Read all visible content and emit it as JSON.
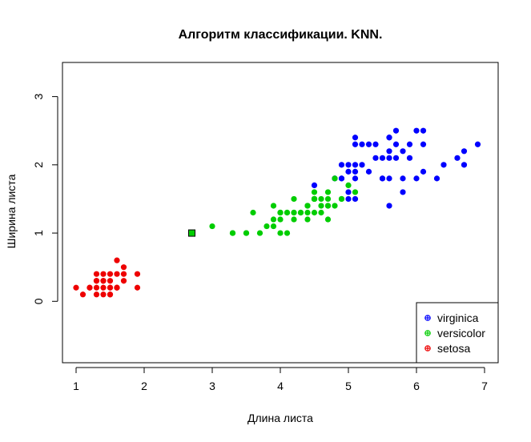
{
  "chart_data": {
    "type": "scatter",
    "title": "Алгоритм классификации. KNN.",
    "xlabel": "Длина листа",
    "ylabel": "Ширина листа",
    "xlim": [
      0.8,
      7.2
    ],
    "ylim": [
      -0.9,
      3.5
    ],
    "xticks": [
      "1",
      "2",
      "3",
      "4",
      "5",
      "6",
      "7"
    ],
    "yticks": [
      "0",
      "1",
      "2",
      "3"
    ],
    "xtick_values": [
      1,
      2,
      3,
      4,
      5,
      6,
      7
    ],
    "ytick_values": [
      0,
      1,
      2,
      3
    ],
    "legend_position": "bottom-right",
    "series": [
      {
        "name": "virginica",
        "color": "#0000ff",
        "points": [
          [
            6.0,
            2.5
          ],
          [
            5.1,
            1.9
          ],
          [
            5.9,
            2.1
          ],
          [
            5.6,
            1.8
          ],
          [
            5.8,
            2.2
          ],
          [
            6.6,
            2.1
          ],
          [
            4.5,
            1.7
          ],
          [
            6.3,
            1.8
          ],
          [
            5.8,
            1.8
          ],
          [
            6.1,
            2.5
          ],
          [
            5.1,
            2.0
          ],
          [
            5.3,
            1.9
          ],
          [
            5.5,
            2.1
          ],
          [
            5.0,
            2.0
          ],
          [
            5.1,
            2.4
          ],
          [
            5.3,
            2.3
          ],
          [
            5.5,
            1.8
          ],
          [
            6.7,
            2.2
          ],
          [
            6.9,
            2.3
          ],
          [
            5.0,
            1.5
          ],
          [
            5.7,
            2.3
          ],
          [
            4.9,
            2.0
          ],
          [
            6.7,
            2.0
          ],
          [
            4.9,
            1.8
          ],
          [
            5.7,
            2.1
          ],
          [
            6.0,
            1.8
          ],
          [
            4.8,
            1.8
          ],
          [
            4.9,
            1.8
          ],
          [
            5.6,
            2.1
          ],
          [
            5.8,
            1.6
          ],
          [
            6.1,
            1.9
          ],
          [
            6.4,
            2.0
          ],
          [
            5.6,
            2.2
          ],
          [
            5.1,
            1.5
          ],
          [
            5.6,
            1.4
          ],
          [
            6.1,
            2.3
          ],
          [
            5.6,
            2.4
          ],
          [
            5.5,
            1.8
          ],
          [
            4.8,
            1.8
          ],
          [
            5.4,
            2.1
          ],
          [
            5.6,
            2.4
          ],
          [
            5.1,
            2.3
          ],
          [
            5.9,
            2.3
          ],
          [
            5.7,
            2.5
          ],
          [
            5.2,
            2.3
          ],
          [
            5.0,
            1.9
          ],
          [
            5.2,
            2.0
          ],
          [
            5.4,
            2.3
          ],
          [
            5.1,
            1.8
          ],
          [
            5.0,
            1.6
          ]
        ]
      },
      {
        "name": "versicolor",
        "color": "#00cd00",
        "points": [
          [
            4.7,
            1.4
          ],
          [
            4.5,
            1.5
          ],
          [
            4.9,
            1.5
          ],
          [
            4.0,
            1.3
          ],
          [
            4.6,
            1.5
          ],
          [
            4.5,
            1.3
          ],
          [
            4.7,
            1.6
          ],
          [
            3.3,
            1.0
          ],
          [
            4.6,
            1.3
          ],
          [
            3.9,
            1.4
          ],
          [
            3.5,
            1.0
          ],
          [
            4.2,
            1.5
          ],
          [
            4.0,
            1.0
          ],
          [
            4.7,
            1.4
          ],
          [
            3.6,
            1.3
          ],
          [
            4.4,
            1.4
          ],
          [
            4.5,
            1.5
          ],
          [
            4.1,
            1.0
          ],
          [
            4.5,
            1.5
          ],
          [
            3.9,
            1.1
          ],
          [
            4.8,
            1.8
          ],
          [
            4.0,
            1.3
          ],
          [
            4.9,
            1.5
          ],
          [
            4.7,
            1.2
          ],
          [
            4.3,
            1.3
          ],
          [
            4.4,
            1.4
          ],
          [
            4.8,
            1.4
          ],
          [
            5.0,
            1.7
          ],
          [
            4.5,
            1.5
          ],
          [
            3.5,
            1.0
          ],
          [
            3.8,
            1.1
          ],
          [
            3.7,
            1.0
          ],
          [
            3.9,
            1.2
          ],
          [
            5.1,
            1.6
          ],
          [
            4.5,
            1.5
          ],
          [
            4.5,
            1.6
          ],
          [
            4.7,
            1.5
          ],
          [
            4.4,
            1.3
          ],
          [
            4.1,
            1.3
          ],
          [
            4.0,
            1.3
          ],
          [
            4.4,
            1.2
          ],
          [
            4.6,
            1.4
          ],
          [
            4.0,
            1.2
          ],
          [
            3.3,
            1.0
          ],
          [
            4.2,
            1.3
          ],
          [
            4.2,
            1.2
          ],
          [
            4.2,
            1.3
          ],
          [
            4.3,
            1.3
          ],
          [
            3.0,
            1.1
          ],
          [
            4.1,
            1.3
          ]
        ]
      },
      {
        "name": "setosa",
        "color": "#ee0000",
        "points": [
          [
            1.4,
            0.2
          ],
          [
            1.3,
            0.2
          ],
          [
            1.5,
            0.2
          ],
          [
            1.7,
            0.4
          ],
          [
            1.4,
            0.3
          ],
          [
            1.5,
            0.1
          ],
          [
            1.6,
            0.2
          ],
          [
            1.1,
            0.1
          ],
          [
            1.2,
            0.2
          ],
          [
            1.5,
            0.4
          ],
          [
            1.3,
            0.4
          ],
          [
            1.7,
            0.3
          ],
          [
            1.0,
            0.2
          ],
          [
            1.7,
            0.5
          ],
          [
            1.9,
            0.2
          ],
          [
            1.6,
            0.4
          ],
          [
            1.6,
            0.2
          ],
          [
            1.5,
            0.2
          ],
          [
            1.4,
            0.1
          ],
          [
            1.3,
            0.3
          ],
          [
            1.3,
            0.3
          ],
          [
            1.6,
            0.6
          ],
          [
            1.9,
            0.4
          ],
          [
            1.4,
            0.3
          ],
          [
            1.6,
            0.2
          ],
          [
            1.5,
            0.3
          ],
          [
            1.4,
            0.4
          ],
          [
            1.2,
            0.2
          ],
          [
            1.3,
            0.1
          ],
          [
            1.5,
            0.1
          ]
        ]
      }
    ],
    "query_point": {
      "x": 2.7,
      "y": 1.0,
      "fill": "#00cd00",
      "stroke": "#000000"
    }
  }
}
